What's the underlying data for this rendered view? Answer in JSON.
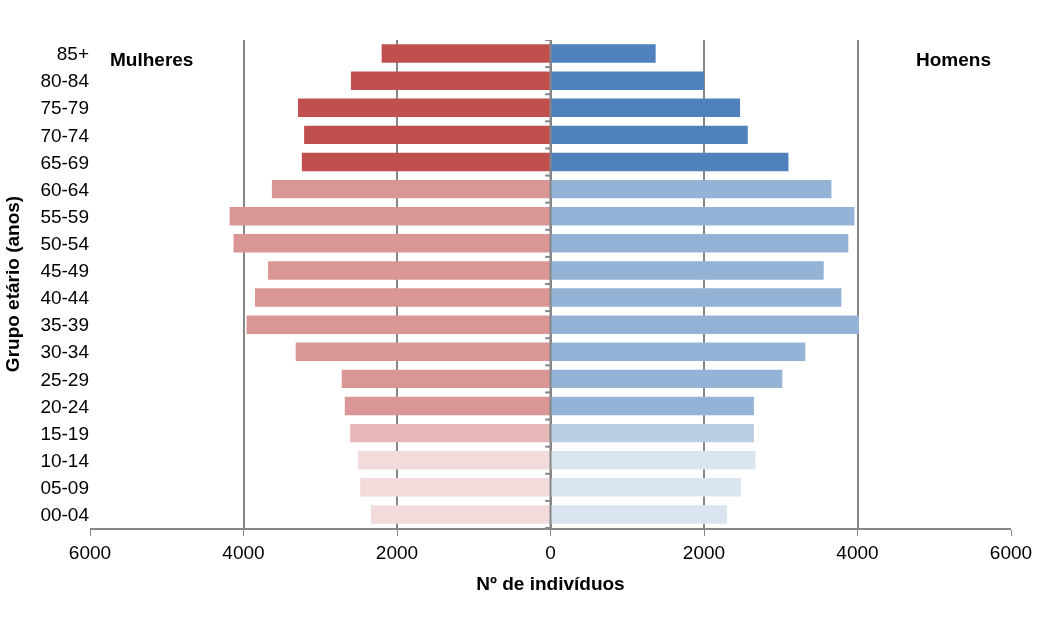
{
  "chart_data": {
    "type": "bar",
    "orientation": "horizontal",
    "stacked": true,
    "xlabel": "Nº de indivíduos",
    "ylabel": "Grupo etário (anos)",
    "categories": [
      "85+",
      "80-84",
      "75-79",
      "70-74",
      "65-69",
      "60-64",
      "55-59",
      "50-54",
      "45-49",
      "40-44",
      "35-39",
      "30-34",
      "25-29",
      "20-24",
      "15-19",
      "10-14",
      "05-09",
      "00-04"
    ],
    "series": [
      {
        "values": [
          -2200,
          -2600,
          -3290,
          -3210,
          -3240,
          -3630,
          -4180,
          -4130,
          -3680,
          -3850,
          -3960,
          -3320,
          -2720,
          -2680,
          -2610,
          -2510,
          -2480,
          -2340
        ],
        "colors": [
          "#c0504d",
          "#c0504d",
          "#c0504d",
          "#c0504d",
          "#c0504d",
          "#d99694",
          "#d99694",
          "#d99694",
          "#d99694",
          "#d99694",
          "#d99694",
          "#d99694",
          "#d99694",
          "#d99694",
          "#e6b9b8",
          "#f2dcdb",
          "#f2dcdb",
          "#f2dcdb"
        ]
      },
      {
        "values": [
          1370,
          2000,
          2470,
          2570,
          3100,
          3660,
          3960,
          3880,
          3560,
          3790,
          4020,
          3320,
          3020,
          2650,
          2650,
          2670,
          2480,
          2300
        ],
        "colors": [
          "#4f81bd",
          "#4f81bd",
          "#4f81bd",
          "#4f81bd",
          "#4f81bd",
          "#95b3d7",
          "#95b3d7",
          "#95b3d7",
          "#95b3d7",
          "#95b3d7",
          "#95b3d7",
          "#95b3d7",
          "#95b3d7",
          "#95b3d7",
          "#b9cde5",
          "#dbe5f1",
          "#dbe5f1",
          "#dbe5f1"
        ]
      }
    ],
    "xlim": [
      -6000,
      6000
    ],
    "xticks": [
      {
        "value": -6000,
        "label": "6000"
      },
      {
        "value": -4000,
        "label": "4000"
      },
      {
        "value": -2000,
        "label": "2000"
      },
      0,
      2000,
      4000,
      6000
    ],
    "annotations": [
      "Mulheres",
      "Homens"
    ],
    "grid": "x",
    "legend": false
  }
}
